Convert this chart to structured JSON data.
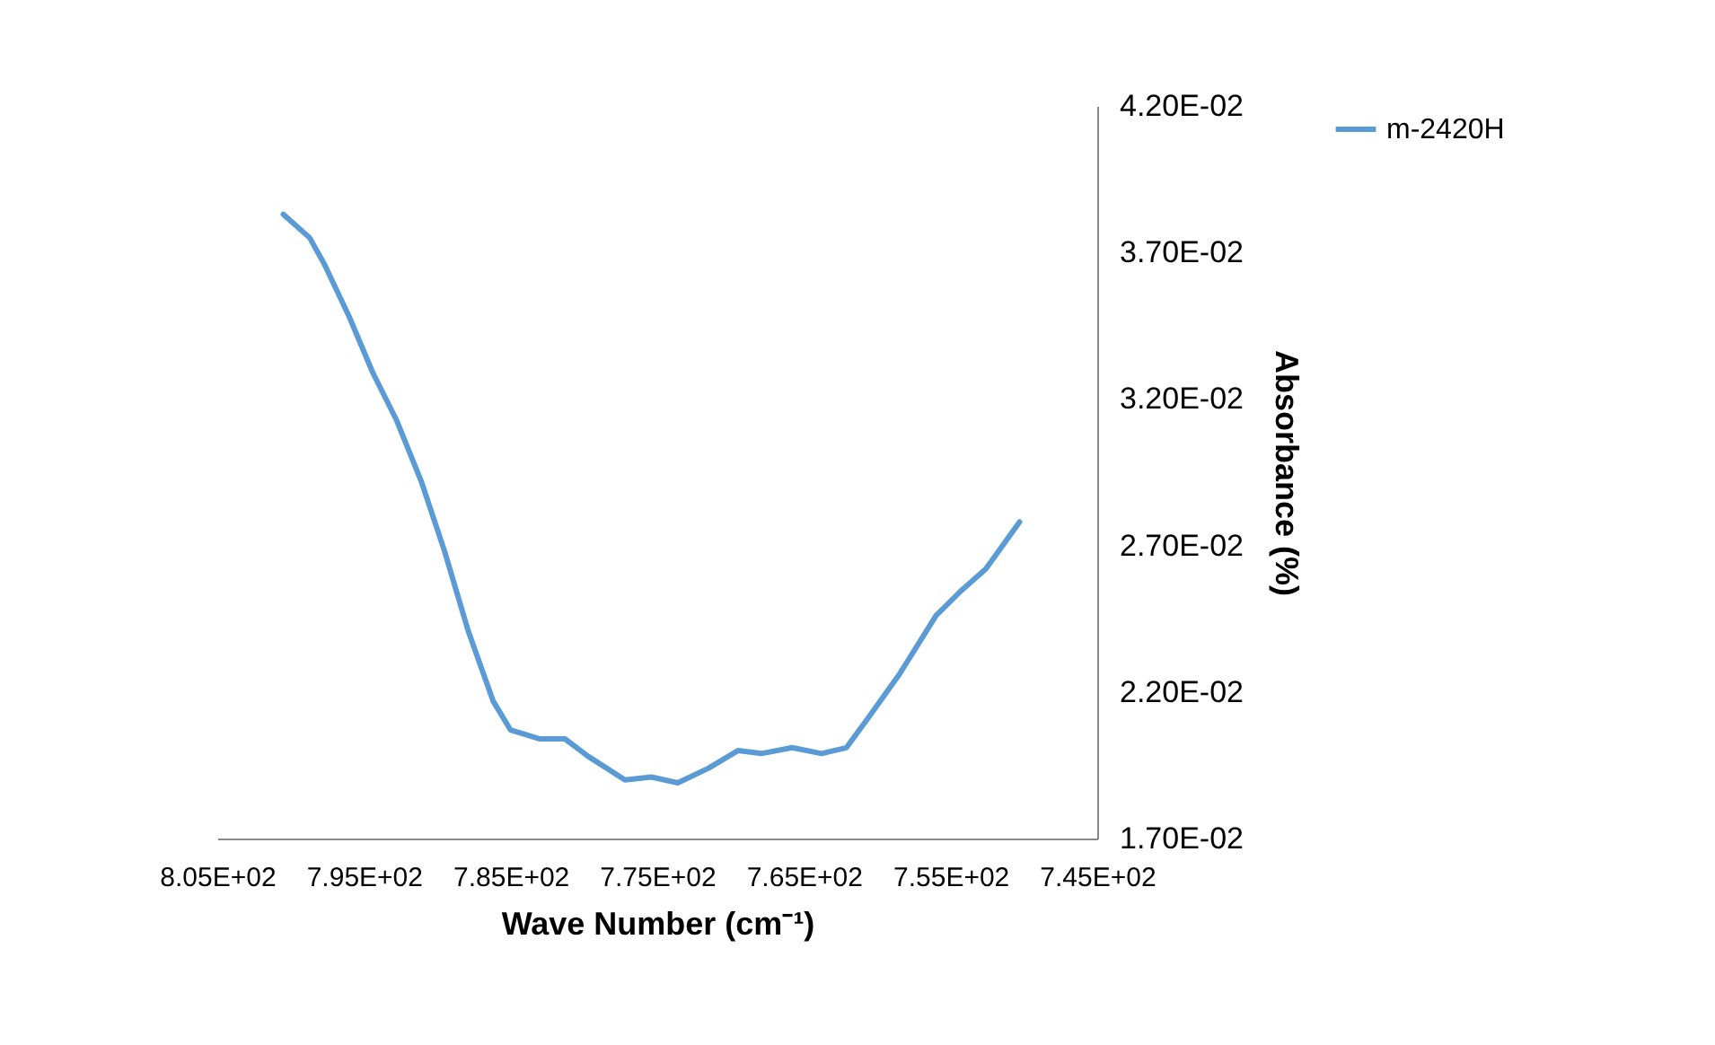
{
  "chart_data": {
    "type": "line",
    "xlabel": "Wave Number (cm⁻¹)",
    "ylabel": "Absorbance (%)",
    "xlim": [
      805,
      745
    ],
    "xticks": [
      {
        "value": 805,
        "label": "8.05E+02"
      },
      {
        "value": 795,
        "label": "7.95E+02"
      },
      {
        "value": 785,
        "label": "7.85E+02"
      },
      {
        "value": 775,
        "label": "7.75E+02"
      },
      {
        "value": 765,
        "label": "7.65E+02"
      },
      {
        "value": 755,
        "label": "7.55E+02"
      },
      {
        "value": 745,
        "label": "7.45E+02"
      }
    ],
    "ylim": [
      0.017,
      0.042
    ],
    "yticks": [
      {
        "value": 0.017,
        "label": "1.70E-02"
      },
      {
        "value": 0.022,
        "label": "2.20E-02"
      },
      {
        "value": 0.027,
        "label": "2.70E-02"
      },
      {
        "value": 0.032,
        "label": "3.20E-02"
      },
      {
        "value": 0.037,
        "label": "3.70E-02"
      },
      {
        "value": 0.042,
        "label": "4.20E-02"
      }
    ],
    "grid": false,
    "legend": "right",
    "marker": "none",
    "line_style": "solid",
    "series": [
      {
        "name": "m-2420H",
        "color": "#5b9bd5",
        "x": [
          800.5,
          798.7,
          797.7,
          796.0,
          794.4,
          792.8,
          791.1,
          789.5,
          787.9,
          786.2,
          785.0,
          783.0,
          781.3,
          779.7,
          777.2,
          775.4,
          773.6,
          771.5,
          769.5,
          767.9,
          765.8,
          763.8,
          762.1,
          760.5,
          758.5,
          756.0,
          754.4,
          752.6,
          750.3
        ],
        "values": [
          0.0383,
          0.0375,
          0.0366,
          0.0348,
          0.0329,
          0.0313,
          0.0292,
          0.0268,
          0.0241,
          0.0217,
          0.0207,
          0.0204,
          0.0204,
          0.0198,
          0.019,
          0.0191,
          0.0189,
          0.0194,
          0.02,
          0.0199,
          0.0201,
          0.0199,
          0.0201,
          0.0212,
          0.0226,
          0.0246,
          0.0254,
          0.0262,
          0.0278
        ]
      }
    ]
  }
}
